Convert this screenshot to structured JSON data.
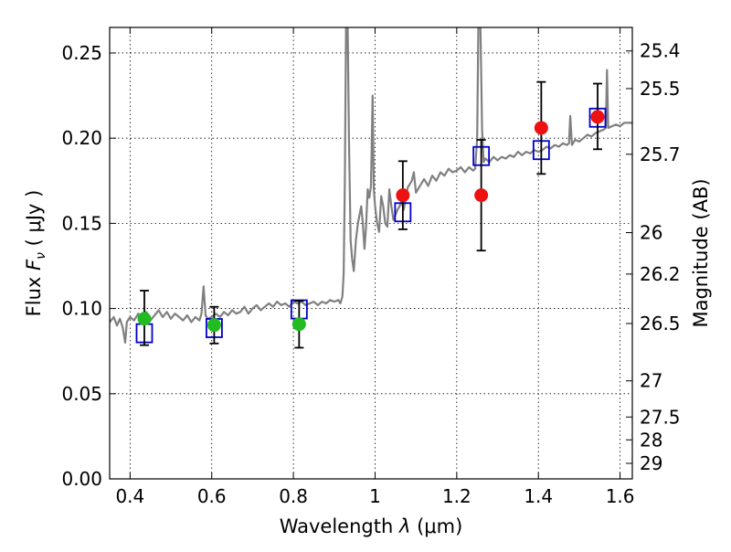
{
  "chart_data": {
    "type": "scatter",
    "xlabel": "Wavelength  λ (μm)",
    "ylabel": "Flux  F_ν  ( μJy )",
    "ylabel_parts": {
      "prefix": "Flux  ",
      "symbol": "F",
      "subscript": "ν",
      "unit": "  ( μJy )"
    },
    "xlabel_parts": {
      "prefix": "Wavelength  ",
      "symbol": "λ",
      "unit": " (μm)"
    },
    "y2label": "Magnitude (AB)",
    "xlim": [
      0.35,
      1.63
    ],
    "ylim": [
      0.0,
      0.265
    ],
    "grid": true,
    "x_ticks": [
      {
        "v": 0.4,
        "label": "0.4"
      },
      {
        "v": 0.6,
        "label": "0.6"
      },
      {
        "v": 0.8,
        "label": "0.8"
      },
      {
        "v": 1.0,
        "label": "1"
      },
      {
        "v": 1.2,
        "label": "1.2"
      },
      {
        "v": 1.4,
        "label": "1.4"
      },
      {
        "v": 1.6,
        "label": "1.6"
      }
    ],
    "y_ticks": [
      {
        "v": 0.0,
        "label": "0.00"
      },
      {
        "v": 0.05,
        "label": "0.05"
      },
      {
        "v": 0.1,
        "label": "0.10"
      },
      {
        "v": 0.15,
        "label": "0.15"
      },
      {
        "v": 0.2,
        "label": "0.20"
      },
      {
        "v": 0.25,
        "label": "0.25"
      }
    ],
    "mag_ticks": [
      {
        "mag": 25.4,
        "label": "25.4"
      },
      {
        "mag": 25.5,
        "label": "25.5"
      },
      {
        "mag": 25.7,
        "label": "25.7"
      },
      {
        "mag": 26.0,
        "label": "26"
      },
      {
        "mag": 26.2,
        "label": "26.2"
      },
      {
        "mag": 26.5,
        "label": "26.5"
      },
      {
        "mag": 27.0,
        "label": "27"
      },
      {
        "mag": 27.5,
        "label": "27.5"
      },
      {
        "mag": 28.0,
        "label": "28"
      },
      {
        "mag": 29.0,
        "label": "29"
      }
    ],
    "colors": {
      "spectrum": "#808080",
      "model": "#0000cc",
      "optical": "#22bb22",
      "nir": "#ee1111",
      "errorbar": "#000000"
    },
    "spectrum": [
      [
        0.35,
        0.092
      ],
      [
        0.36,
        0.095
      ],
      [
        0.368,
        0.09
      ],
      [
        0.375,
        0.094
      ],
      [
        0.382,
        0.089
      ],
      [
        0.388,
        0.08
      ],
      [
        0.392,
        0.092
      ],
      [
        0.4,
        0.095
      ],
      [
        0.41,
        0.093
      ],
      [
        0.42,
        0.097
      ],
      [
        0.43,
        0.094
      ],
      [
        0.44,
        0.098
      ],
      [
        0.45,
        0.093
      ],
      [
        0.46,
        0.096
      ],
      [
        0.47,
        0.099
      ],
      [
        0.48,
        0.095
      ],
      [
        0.49,
        0.098
      ],
      [
        0.5,
        0.094
      ],
      [
        0.51,
        0.097
      ],
      [
        0.52,
        0.095
      ],
      [
        0.53,
        0.093
      ],
      [
        0.54,
        0.096
      ],
      [
        0.55,
        0.092
      ],
      [
        0.56,
        0.095
      ],
      [
        0.57,
        0.093
      ],
      [
        0.575,
        0.097
      ],
      [
        0.58,
        0.113
      ],
      [
        0.585,
        0.096
      ],
      [
        0.59,
        0.094
      ],
      [
        0.6,
        0.095
      ],
      [
        0.61,
        0.097
      ],
      [
        0.62,
        0.095
      ],
      [
        0.63,
        0.098
      ],
      [
        0.64,
        0.096
      ],
      [
        0.65,
        0.099
      ],
      [
        0.66,
        0.097
      ],
      [
        0.67,
        0.098
      ],
      [
        0.68,
        0.101
      ],
      [
        0.69,
        0.097
      ],
      [
        0.7,
        0.1
      ],
      [
        0.71,
        0.102
      ],
      [
        0.72,
        0.099
      ],
      [
        0.73,
        0.101
      ],
      [
        0.74,
        0.103
      ],
      [
        0.75,
        0.101
      ],
      [
        0.76,
        0.104
      ],
      [
        0.77,
        0.102
      ],
      [
        0.78,
        0.103
      ],
      [
        0.79,
        0.101
      ],
      [
        0.8,
        0.104
      ],
      [
        0.81,
        0.103
      ],
      [
        0.82,
        0.104
      ],
      [
        0.83,
        0.102
      ],
      [
        0.84,
        0.103
      ],
      [
        0.85,
        0.104
      ],
      [
        0.86,
        0.102
      ],
      [
        0.87,
        0.104
      ],
      [
        0.88,
        0.103
      ],
      [
        0.89,
        0.105
      ],
      [
        0.9,
        0.104
      ],
      [
        0.91,
        0.105
      ],
      [
        0.915,
        0.103
      ],
      [
        0.92,
        0.107
      ],
      [
        0.923,
        0.12
      ],
      [
        0.926,
        0.175
      ],
      [
        0.929,
        0.265
      ],
      [
        0.933,
        0.265
      ],
      [
        0.936,
        0.2
      ],
      [
        0.94,
        0.14
      ],
      [
        0.944,
        0.129
      ],
      [
        0.948,
        0.122
      ],
      [
        0.953,
        0.14
      ],
      [
        0.958,
        0.15
      ],
      [
        0.962,
        0.155
      ],
      [
        0.966,
        0.16
      ],
      [
        0.97,
        0.15
      ],
      [
        0.974,
        0.135
      ],
      [
        0.978,
        0.148
      ],
      [
        0.982,
        0.17
      ],
      [
        0.986,
        0.165
      ],
      [
        0.99,
        0.172
      ],
      [
        0.994,
        0.225
      ],
      [
        0.997,
        0.17
      ],
      [
        1.0,
        0.16
      ],
      [
        1.005,
        0.15
      ],
      [
        1.01,
        0.145
      ],
      [
        1.015,
        0.166
      ],
      [
        1.02,
        0.16
      ],
      [
        1.025,
        0.15
      ],
      [
        1.03,
        0.148
      ],
      [
        1.035,
        0.17
      ],
      [
        1.04,
        0.16
      ],
      [
        1.045,
        0.152
      ],
      [
        1.05,
        0.155
      ],
      [
        1.055,
        0.158
      ],
      [
        1.06,
        0.16
      ],
      [
        1.065,
        0.163
      ],
      [
        1.07,
        0.158
      ],
      [
        1.08,
        0.171
      ],
      [
        1.09,
        0.175
      ],
      [
        1.095,
        0.18
      ],
      [
        1.1,
        0.168
      ],
      [
        1.11,
        0.172
      ],
      [
        1.12,
        0.176
      ],
      [
        1.13,
        0.172
      ],
      [
        1.14,
        0.178
      ],
      [
        1.15,
        0.175
      ],
      [
        1.16,
        0.18
      ],
      [
        1.17,
        0.178
      ],
      [
        1.18,
        0.182
      ],
      [
        1.19,
        0.18
      ],
      [
        1.2,
        0.181
      ],
      [
        1.21,
        0.183
      ],
      [
        1.22,
        0.18
      ],
      [
        1.23,
        0.183
      ],
      [
        1.24,
        0.181
      ],
      [
        1.245,
        0.182
      ],
      [
        1.25,
        0.2
      ],
      [
        1.253,
        0.265
      ],
      [
        1.258,
        0.265
      ],
      [
        1.262,
        0.205
      ],
      [
        1.266,
        0.186
      ],
      [
        1.27,
        0.188
      ],
      [
        1.28,
        0.186
      ],
      [
        1.29,
        0.189
      ],
      [
        1.3,
        0.187
      ],
      [
        1.31,
        0.189
      ],
      [
        1.32,
        0.188
      ],
      [
        1.33,
        0.19
      ],
      [
        1.34,
        0.189
      ],
      [
        1.35,
        0.192
      ],
      [
        1.36,
        0.19
      ],
      [
        1.37,
        0.192
      ],
      [
        1.38,
        0.191
      ],
      [
        1.39,
        0.193
      ],
      [
        1.4,
        0.192
      ],
      [
        1.41,
        0.193
      ],
      [
        1.42,
        0.195
      ],
      [
        1.43,
        0.194
      ],
      [
        1.44,
        0.196
      ],
      [
        1.45,
        0.195
      ],
      [
        1.46,
        0.197
      ],
      [
        1.47,
        0.196
      ],
      [
        1.475,
        0.197
      ],
      [
        1.478,
        0.213
      ],
      [
        1.482,
        0.196
      ],
      [
        1.49,
        0.199
      ],
      [
        1.5,
        0.198
      ],
      [
        1.51,
        0.2
      ],
      [
        1.52,
        0.202
      ],
      [
        1.53,
        0.201
      ],
      [
        1.54,
        0.203
      ],
      [
        1.55,
        0.204
      ],
      [
        1.56,
        0.205
      ],
      [
        1.565,
        0.206
      ],
      [
        1.568,
        0.24
      ],
      [
        1.571,
        0.206
      ],
      [
        1.58,
        0.207
      ],
      [
        1.59,
        0.208
      ],
      [
        1.6,
        0.207
      ],
      [
        1.61,
        0.209
      ],
      [
        1.62,
        0.209
      ],
      [
        1.63,
        0.209
      ]
    ],
    "model_points": [
      {
        "x": 0.435,
        "y": 0.0855
      },
      {
        "x": 0.606,
        "y": 0.0885
      },
      {
        "x": 0.814,
        "y": 0.0995
      },
      {
        "x": 1.068,
        "y": 0.1565
      },
      {
        "x": 1.26,
        "y": 0.1895
      },
      {
        "x": 1.407,
        "y": 0.193
      },
      {
        "x": 1.545,
        "y": 0.212
      }
    ],
    "optical_points": [
      {
        "x": 0.435,
        "y": 0.094,
        "err_low": 0.0785,
        "err_high": 0.1105
      },
      {
        "x": 0.606,
        "y": 0.0903,
        "err_low": 0.0795,
        "err_high": 0.101
      },
      {
        "x": 0.814,
        "y": 0.0908,
        "err_low": 0.077,
        "err_high": 0.1045
      }
    ],
    "nir_points": [
      {
        "x": 1.068,
        "y": 0.1665,
        "err_low": 0.1465,
        "err_high": 0.1865
      },
      {
        "x": 1.26,
        "y": 0.1665,
        "err_low": 0.134,
        "err_high": 0.199
      },
      {
        "x": 1.407,
        "y": 0.206,
        "err_low": 0.179,
        "err_high": 0.233
      },
      {
        "x": 1.545,
        "y": 0.2125,
        "err_low": 0.1935,
        "err_high": 0.232
      }
    ]
  }
}
